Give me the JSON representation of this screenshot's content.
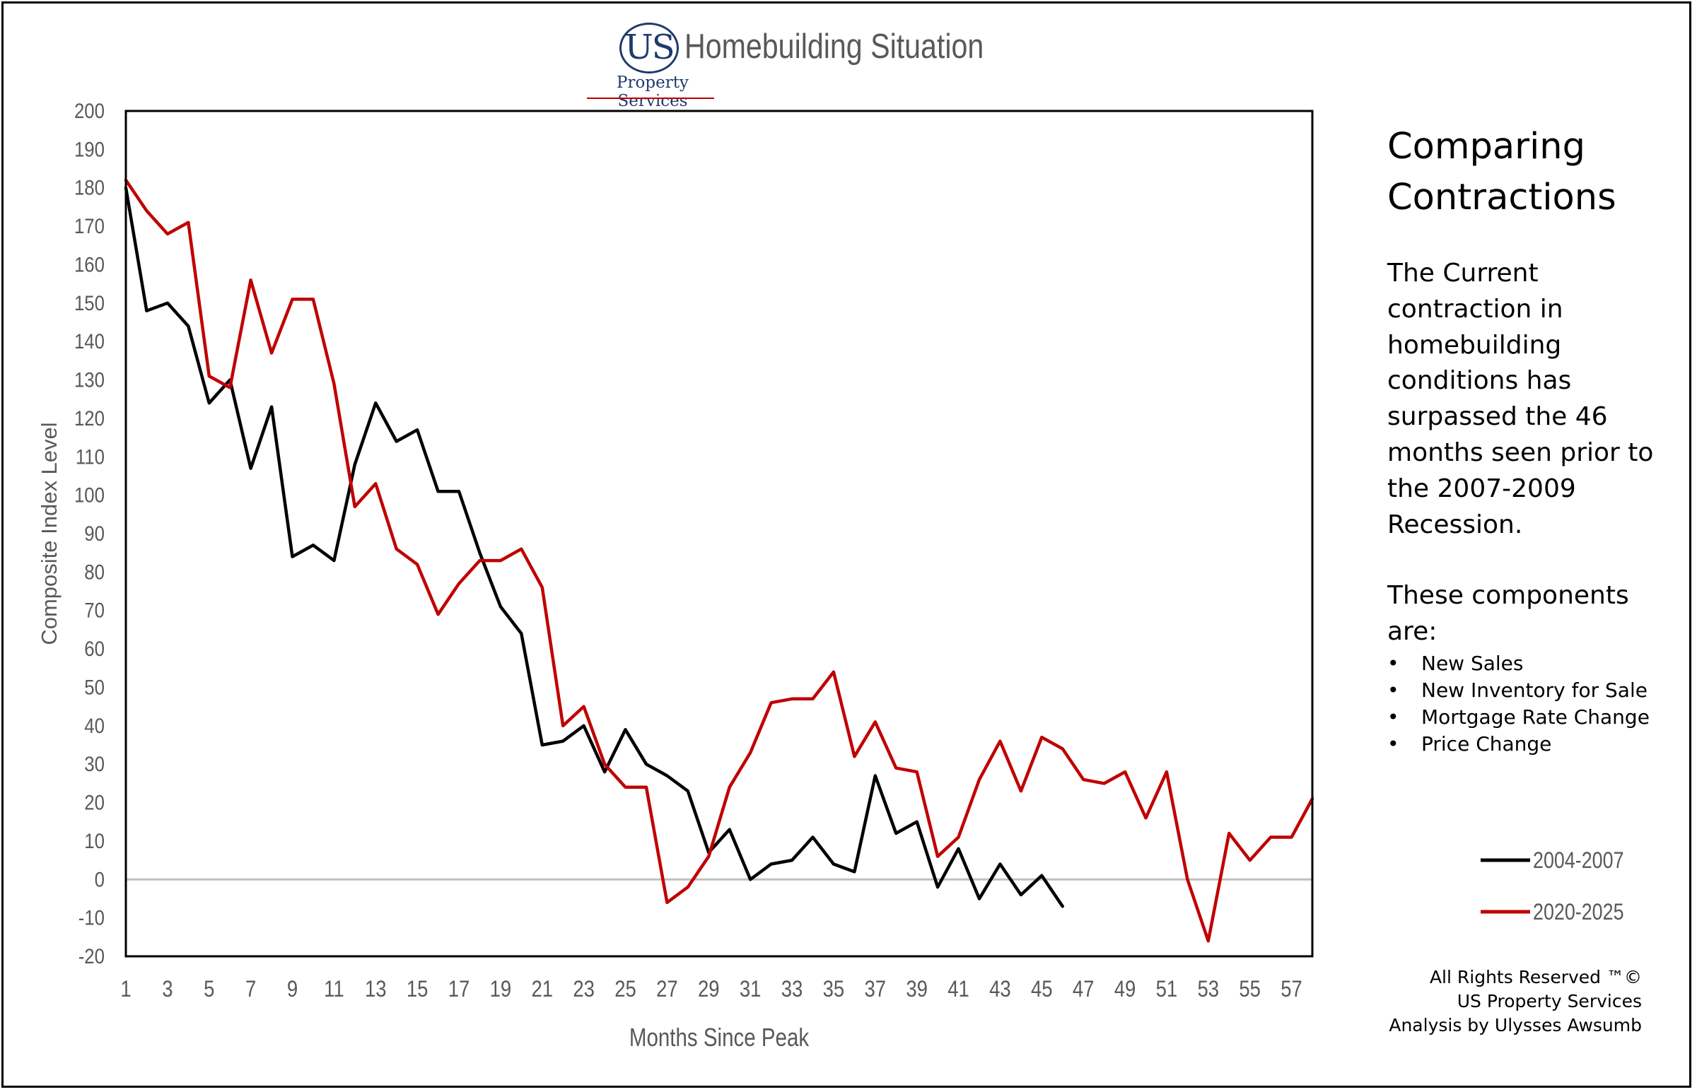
{
  "header": {
    "logo_letters": "US",
    "logo_subtitle": "Property Services",
    "title": "Homebuilding Situation"
  },
  "sidebar": {
    "title_line1": "Comparing",
    "title_line2": "Contractions",
    "description": "The Current contraction in homebuilding conditions has surpassed the 46 months seen prior to the 2007-2009 Recession.",
    "components_intro": "These components are:",
    "components": [
      "New Sales",
      "New Inventory for Sale",
      "Mortgage Rate Change",
      "Price Change"
    ]
  },
  "credits": {
    "line1": "All Rights Reserved ™©",
    "line2": "US Property Services",
    "line3": "Analysis by Ulysses Awsumb"
  },
  "chart_data": {
    "type": "line",
    "title": "Homebuilding Situation",
    "xlabel": "Months Since Peak",
    "ylabel": "Composite Index Level",
    "xlim": [
      1,
      58
    ],
    "ylim": [
      -20,
      200
    ],
    "yticks": [
      200,
      190,
      180,
      170,
      160,
      150,
      140,
      130,
      120,
      110,
      100,
      90,
      80,
      70,
      60,
      50,
      40,
      30,
      20,
      10,
      0,
      -10,
      -20
    ],
    "xticks": [
      1,
      3,
      5,
      7,
      9,
      11,
      13,
      15,
      17,
      19,
      21,
      23,
      25,
      27,
      29,
      31,
      33,
      35,
      37,
      39,
      41,
      43,
      45,
      47,
      49,
      51,
      53,
      55,
      57
    ],
    "zero_line": true,
    "grid": false,
    "legend_position": "right",
    "series": [
      {
        "name": "2004-2007",
        "color": "#000000",
        "values": [
          180,
          148,
          150,
          144,
          124,
          130,
          107,
          123,
          84,
          87,
          83,
          108,
          124,
          114,
          117,
          101,
          101,
          85,
          71,
          64,
          35,
          36,
          40,
          28,
          39,
          30,
          27,
          23,
          7,
          13,
          0,
          4,
          5,
          11,
          4,
          2,
          27,
          12,
          15,
          -2,
          8,
          -5,
          4,
          -4,
          1,
          -7
        ]
      },
      {
        "name": "2020-2025",
        "color": "#c00000",
        "values": [
          182,
          174,
          168,
          171,
          131,
          128,
          156,
          137,
          151,
          151,
          129,
          97,
          103,
          86,
          82,
          69,
          77,
          83,
          83,
          86,
          76,
          40,
          45,
          30,
          24,
          24,
          -6,
          -2,
          6,
          24,
          33,
          46,
          47,
          47,
          54,
          32,
          41,
          29,
          28,
          6,
          11,
          26,
          36,
          23,
          37,
          34,
          26,
          25,
          28,
          16,
          28,
          0,
          -16,
          12,
          5,
          11,
          11,
          21
        ]
      }
    ]
  }
}
